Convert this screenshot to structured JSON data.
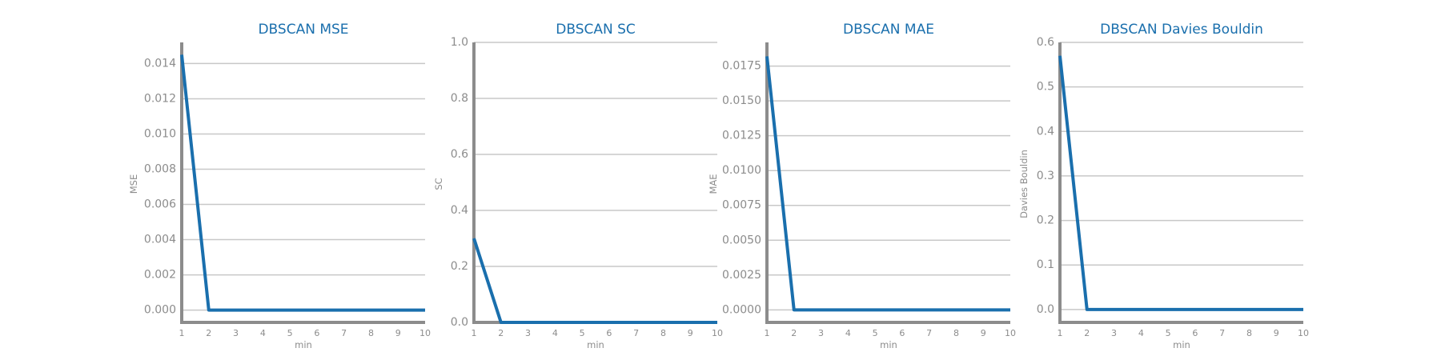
{
  "chart_data": [
    {
      "type": "line",
      "title": "DBSCAN MSE",
      "xlabel": "min",
      "ylabel": "MSE",
      "x": [
        1,
        2,
        3,
        4,
        5,
        6,
        7,
        8,
        9,
        10
      ],
      "series": [
        {
          "values": [
            0.0145,
            0.0,
            0.0,
            0.0,
            0.0,
            0.0,
            0.0,
            0.0,
            0.0,
            0.0
          ]
        }
      ],
      "xlim": [
        1,
        10
      ],
      "ylim": [
        -0.0007,
        0.0152
      ],
      "yticks": [
        0.0,
        0.002,
        0.004,
        0.006,
        0.008,
        0.01,
        0.012,
        0.014
      ],
      "ytick_labels": [
        "0.000",
        "0.002",
        "0.004",
        "0.006",
        "0.008",
        "0.010",
        "0.012",
        "0.014"
      ],
      "grid": true,
      "color": "#1a6fad"
    },
    {
      "type": "line",
      "title": "DBSCAN SC",
      "xlabel": "min",
      "ylabel": "SC",
      "x": [
        1,
        2,
        3,
        4,
        5,
        6,
        7,
        8,
        9,
        10
      ],
      "series": [
        {
          "values": [
            0.3,
            0.0,
            0.0,
            0.0,
            0.0,
            0.0,
            0.0,
            0.0,
            0.0,
            0.0
          ]
        }
      ],
      "xlim": [
        1,
        10
      ],
      "ylim": [
        0.0,
        1.0
      ],
      "yticks": [
        0.0,
        0.2,
        0.4,
        0.6,
        0.8,
        1.0
      ],
      "ytick_labels": [
        "0.0",
        "0.2",
        "0.4",
        "0.6",
        "0.8",
        "1.0"
      ],
      "grid": true,
      "color": "#1a6fad"
    },
    {
      "type": "line",
      "title": "DBSCAN MAE",
      "xlabel": "min",
      "ylabel": "MAE",
      "x": [
        1,
        2,
        3,
        4,
        5,
        6,
        7,
        8,
        9,
        10
      ],
      "series": [
        {
          "values": [
            0.0182,
            0.0,
            0.0,
            0.0,
            0.0,
            0.0,
            0.0,
            0.0,
            0.0,
            0.0
          ]
        }
      ],
      "xlim": [
        1,
        10
      ],
      "ylim": [
        -0.0009,
        0.0192
      ],
      "yticks": [
        0.0,
        0.0025,
        0.005,
        0.0075,
        0.01,
        0.0125,
        0.015,
        0.0175
      ],
      "ytick_labels": [
        "0.0000",
        "0.0025",
        "0.0050",
        "0.0075",
        "0.0100",
        "0.0125",
        "0.0150",
        "0.0175"
      ],
      "grid": true,
      "color": "#1a6fad"
    },
    {
      "type": "line",
      "title": "DBSCAN Davies Bouldin",
      "xlabel": "min",
      "ylabel": "Davies Bouldin",
      "x": [
        1,
        2,
        3,
        4,
        5,
        6,
        7,
        8,
        9,
        10
      ],
      "series": [
        {
          "values": [
            0.57,
            0.0,
            0.0,
            0.0,
            0.0,
            0.0,
            0.0,
            0.0,
            0.0,
            0.0
          ]
        }
      ],
      "xlim": [
        1,
        10
      ],
      "ylim": [
        -0.029,
        0.6
      ],
      "yticks": [
        0.0,
        0.1,
        0.2,
        0.3,
        0.4,
        0.5,
        0.6
      ],
      "ytick_labels": [
        "0.0",
        "0.1",
        "0.2",
        "0.3",
        "0.4",
        "0.5",
        "0.6"
      ],
      "grid": true,
      "color": "#1a6fad"
    }
  ]
}
